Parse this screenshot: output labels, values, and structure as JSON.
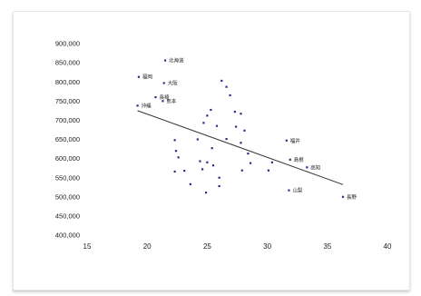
{
  "chart_data": {
    "type": "scatter",
    "title": "",
    "xlabel": "",
    "ylabel": "",
    "xlim": [
      15,
      40
    ],
    "ylim": [
      400000,
      900000
    ],
    "x_ticks": [
      "15",
      "20",
      "25",
      "30",
      "35",
      "40"
    ],
    "y_ticks": [
      "400,000",
      "450,000",
      "500,000",
      "550,000",
      "600,000",
      "650,000",
      "700,000",
      "750,000",
      "800,000",
      "850,000",
      "900,000"
    ],
    "grid": false,
    "legend": "none",
    "point_color": "#2b2b8a",
    "trendline": {
      "x": [
        19.2,
        36.3
      ],
      "y": [
        725000,
        532000
      ],
      "color": "#333333"
    },
    "points": [
      {
        "x": 21.5,
        "y": 856000,
        "label": "北海道"
      },
      {
        "x": 21.4,
        "y": 797000,
        "label": "大阪"
      },
      {
        "x": 19.3,
        "y": 813000,
        "label": "福岡"
      },
      {
        "x": 20.7,
        "y": 760000,
        "label": "長崎"
      },
      {
        "x": 21.3,
        "y": 750000,
        "label": "熊本"
      },
      {
        "x": 19.2,
        "y": 738000,
        "label": "沖縄"
      },
      {
        "x": 31.6,
        "y": 647000,
        "label": "福井"
      },
      {
        "x": 31.9,
        "y": 597000,
        "label": "島根"
      },
      {
        "x": 33.3,
        "y": 577000,
        "label": "高知"
      },
      {
        "x": 31.8,
        "y": 517000,
        "label": "山梨"
      },
      {
        "x": 36.3,
        "y": 500000,
        "label": "長野"
      },
      {
        "x": 26.2,
        "y": 803000,
        "label": ""
      },
      {
        "x": 26.6,
        "y": 787000,
        "label": ""
      },
      {
        "x": 26.9,
        "y": 765000,
        "label": ""
      },
      {
        "x": 25.3,
        "y": 727000,
        "label": ""
      },
      {
        "x": 25.0,
        "y": 712000,
        "label": ""
      },
      {
        "x": 27.3,
        "y": 722000,
        "label": ""
      },
      {
        "x": 27.8,
        "y": 717000,
        "label": ""
      },
      {
        "x": 24.7,
        "y": 693000,
        "label": ""
      },
      {
        "x": 25.8,
        "y": 685000,
        "label": ""
      },
      {
        "x": 27.4,
        "y": 683000,
        "label": ""
      },
      {
        "x": 28.1,
        "y": 673000,
        "label": ""
      },
      {
        "x": 22.3,
        "y": 648000,
        "label": ""
      },
      {
        "x": 24.2,
        "y": 650000,
        "label": ""
      },
      {
        "x": 26.6,
        "y": 651000,
        "label": ""
      },
      {
        "x": 27.8,
        "y": 641000,
        "label": ""
      },
      {
        "x": 22.4,
        "y": 620000,
        "label": ""
      },
      {
        "x": 25.4,
        "y": 627000,
        "label": ""
      },
      {
        "x": 28.4,
        "y": 613000,
        "label": ""
      },
      {
        "x": 22.6,
        "y": 603000,
        "label": ""
      },
      {
        "x": 24.4,
        "y": 593000,
        "label": ""
      },
      {
        "x": 25.0,
        "y": 590000,
        "label": ""
      },
      {
        "x": 25.5,
        "y": 582000,
        "label": ""
      },
      {
        "x": 28.6,
        "y": 588000,
        "label": ""
      },
      {
        "x": 30.4,
        "y": 590000,
        "label": ""
      },
      {
        "x": 22.3,
        "y": 566000,
        "label": ""
      },
      {
        "x": 23.1,
        "y": 568000,
        "label": ""
      },
      {
        "x": 24.6,
        "y": 572000,
        "label": ""
      },
      {
        "x": 26.0,
        "y": 550000,
        "label": ""
      },
      {
        "x": 27.9,
        "y": 569000,
        "label": ""
      },
      {
        "x": 30.1,
        "y": 569000,
        "label": ""
      },
      {
        "x": 23.6,
        "y": 533000,
        "label": ""
      },
      {
        "x": 26.0,
        "y": 528000,
        "label": ""
      },
      {
        "x": 24.9,
        "y": 511000,
        "label": ""
      }
    ]
  }
}
